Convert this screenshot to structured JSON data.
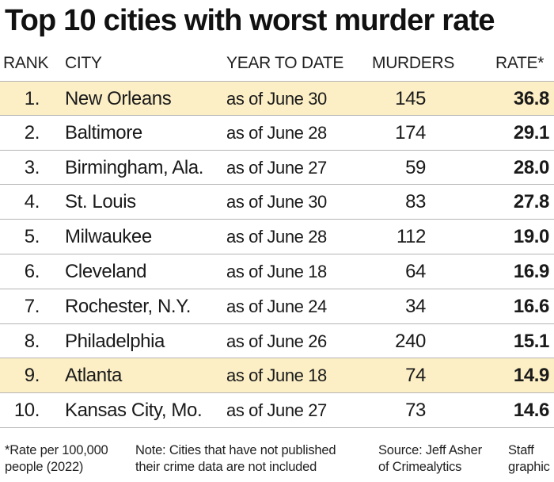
{
  "chart_data": {
    "type": "table",
    "title": "Top 10 cities with worst murder rate",
    "columns": [
      "RANK",
      "CITY",
      "YEAR TO DATE",
      "MURDERS",
      "RATE*"
    ],
    "rows": [
      {
        "rank": "1.",
        "city": "New Orleans",
        "date": "as of June 30",
        "murders": 145,
        "rate": "36.8",
        "highlight": true
      },
      {
        "rank": "2.",
        "city": "Baltimore",
        "date": "as of June 28",
        "murders": 174,
        "rate": "29.1",
        "highlight": false
      },
      {
        "rank": "3.",
        "city": "Birmingham, Ala.",
        "date": "as of June 27",
        "murders": 59,
        "rate": "28.0",
        "highlight": false
      },
      {
        "rank": "4.",
        "city": "St. Louis",
        "date": "as of June 30",
        "murders": 83,
        "rate": "27.8",
        "highlight": false
      },
      {
        "rank": "5.",
        "city": "Milwaukee",
        "date": "as of June 28",
        "murders": 112,
        "rate": "19.0",
        "highlight": false
      },
      {
        "rank": "6.",
        "city": "Cleveland",
        "date": "as of June 18",
        "murders": 64,
        "rate": "16.9",
        "highlight": false
      },
      {
        "rank": "7.",
        "city": "Rochester, N.Y.",
        "date": "as of June 24",
        "murders": 34,
        "rate": "16.6",
        "highlight": false
      },
      {
        "rank": "8.",
        "city": "Philadelphia",
        "date": "as of June 26",
        "murders": 240,
        "rate": "15.1",
        "highlight": false
      },
      {
        "rank": "9.",
        "city": "Atlanta",
        "date": "as of June 18",
        "murders": 74,
        "rate": "14.9",
        "highlight": true
      },
      {
        "rank": "10.",
        "city": "Kansas City, Mo.",
        "date": "as of June 27",
        "murders": 73,
        "rate": "14.6",
        "highlight": false
      }
    ],
    "highlight_color": "#fcefc6"
  },
  "footnotes": {
    "rate_note_line1": "*Rate per 100,000",
    "rate_note_line2": "people (2022)",
    "note_line1": "Note: Cities that have not published",
    "note_line2": "their crime data are not included",
    "source_line1": "Source: Jeff Asher",
    "source_line2": "of Crimealytics",
    "credit_line1": "Staff",
    "credit_line2": "graphic"
  }
}
